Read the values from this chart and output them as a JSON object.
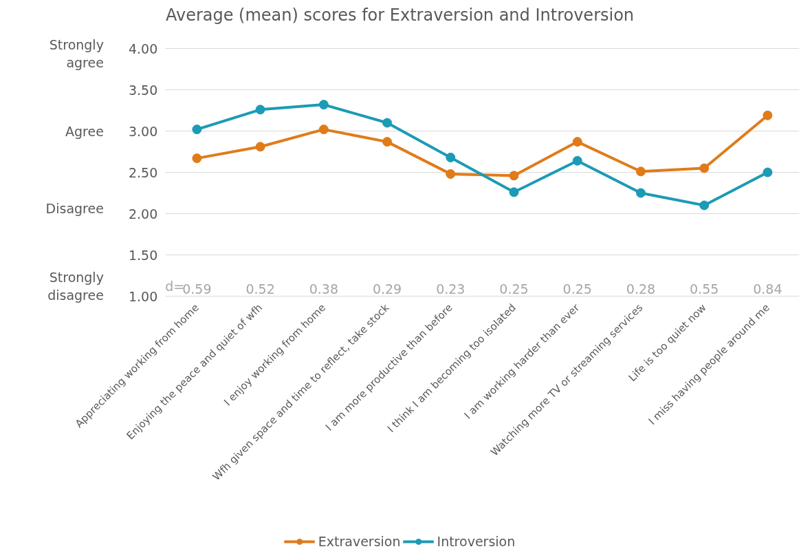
{
  "chart_data": {
    "type": "line",
    "title": "Average (mean) scores for Extraversion and Introversion",
    "categories": [
      "Appreciating working from home",
      "Enjoying the peace and quiet of wfh",
      "I enjoy working from home",
      "Wfh given space and time to reflect, take stock",
      "I am more productive than before",
      "I think I am becoming too isolated",
      "I am working harder than ever",
      "Watching more TV or streaming services",
      "Life is too quiet now",
      "I miss having people around me"
    ],
    "series": [
      {
        "name": "Extraversion",
        "color": "#e07b1a",
        "values": [
          2.67,
          2.81,
          3.02,
          2.87,
          2.48,
          2.46,
          2.87,
          2.51,
          2.55,
          3.19
        ]
      },
      {
        "name": "Introversion",
        "color": "#1b9bb5",
        "values": [
          3.02,
          3.26,
          3.32,
          3.1,
          2.68,
          2.26,
          2.64,
          2.25,
          2.1,
          2.5
        ]
      }
    ],
    "ylim": [
      1,
      4
    ],
    "yticks": [
      {
        "value": 1,
        "label": "1.00"
      },
      {
        "value": 1.5,
        "label": "1.50"
      },
      {
        "value": 2,
        "label": "2.00"
      },
      {
        "value": 2.5,
        "label": "2.50"
      },
      {
        "value": 3,
        "label": "3.00"
      },
      {
        "value": 3.5,
        "label": "3.50"
      },
      {
        "value": 4,
        "label": "4.00"
      }
    ],
    "annotations": [
      "d=",
      "0.59",
      "0.52",
      "0.38",
      "0.29",
      "0.23",
      "0.25",
      "0.25",
      "0.28",
      "0.55",
      "0.84",
      "Strongly\nagree",
      "Agree",
      "Disagree",
      "Strongly\ndisagree"
    ],
    "grid": "y",
    "legend": "bottom",
    "marker": "circle",
    "line_style": "solid"
  }
}
